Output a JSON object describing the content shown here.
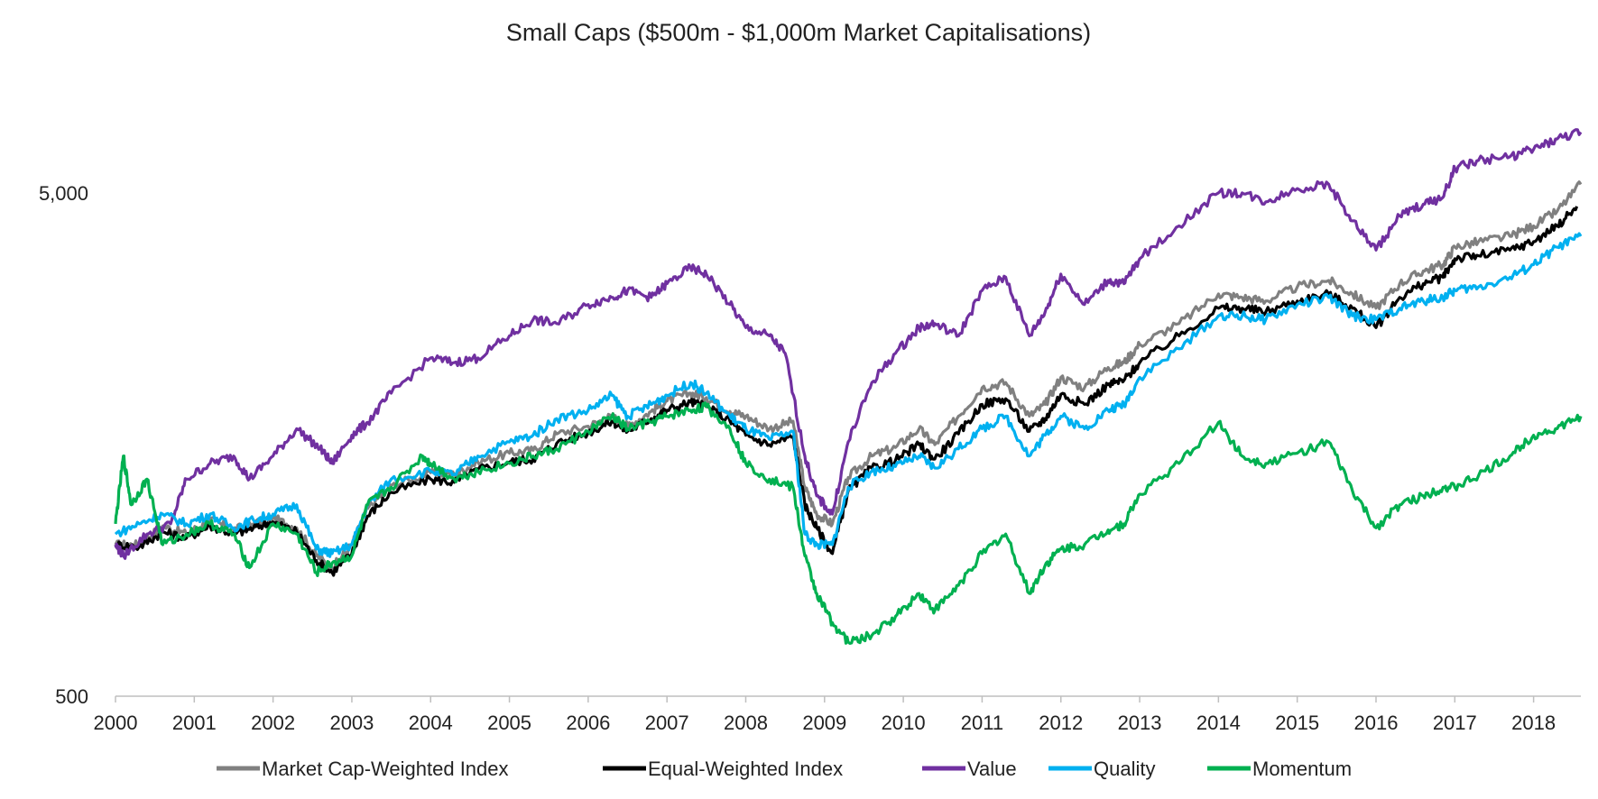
{
  "chart_data": {
    "type": "line",
    "title": "Small Caps ($500m - $1,000m Market Capitalisations)",
    "xlabel": "",
    "ylabel": "",
    "y_scale": "log",
    "ylim": [
      500,
      8000
    ],
    "xlim": [
      2000,
      2018.6
    ],
    "grid": false,
    "legend_position": "bottom",
    "y_ticks": [
      500,
      5000
    ],
    "y_tick_labels": [
      "500",
      "5,000"
    ],
    "x_ticks": [
      2000,
      2001,
      2002,
      2003,
      2004,
      2005,
      2006,
      2007,
      2008,
      2009,
      2010,
      2011,
      2012,
      2013,
      2014,
      2015,
      2016,
      2017,
      2018
    ],
    "x_tick_labels": [
      "2000",
      "2001",
      "2002",
      "2003",
      "2004",
      "2005",
      "2006",
      "2007",
      "2008",
      "2009",
      "2010",
      "2011",
      "2012",
      "2013",
      "2014",
      "2015",
      "2016",
      "2017",
      "2018"
    ],
    "series": [
      {
        "name": "Market Cap-Weighted Index",
        "color": "#808080",
        "x": [
          2000.0,
          2000.3,
          2000.6,
          2000.9,
          2001.2,
          2001.5,
          2001.75,
          2002.0,
          2002.3,
          2002.55,
          2002.75,
          2003.0,
          2003.2,
          2003.5,
          2004.0,
          2004.3,
          2004.6,
          2005.0,
          2005.3,
          2005.6,
          2006.0,
          2006.3,
          2006.5,
          2006.8,
          2007.0,
          2007.3,
          2007.5,
          2007.8,
          2008.0,
          2008.3,
          2008.6,
          2008.75,
          2008.9,
          2009.1,
          2009.3,
          2009.6,
          2009.9,
          2010.2,
          2010.4,
          2010.7,
          2011.0,
          2011.3,
          2011.6,
          2011.8,
          2012.0,
          2012.3,
          2012.6,
          2012.8,
          2013.0,
          2013.5,
          2014.0,
          2014.3,
          2014.6,
          2015.0,
          2015.4,
          2015.7,
          2016.0,
          2016.3,
          2016.6,
          2016.85,
          2017.0,
          2017.3,
          2017.7,
          2018.0,
          2018.3,
          2018.6
        ],
        "values": [
          1000,
          1000,
          1090,
          1050,
          1120,
          1070,
          1100,
          1130,
          1080,
          950,
          900,
          1000,
          1180,
          1310,
          1390,
          1380,
          1460,
          1520,
          1540,
          1660,
          1720,
          1800,
          1720,
          1840,
          1930,
          2000,
          1960,
          1840,
          1800,
          1700,
          1760,
          1300,
          1150,
          1100,
          1360,
          1500,
          1560,
          1700,
          1580,
          1800,
          2050,
          2100,
          1800,
          1900,
          2150,
          2050,
          2250,
          2300,
          2500,
          2750,
          3150,
          3100,
          3050,
          3250,
          3350,
          3150,
          2950,
          3300,
          3500,
          3600,
          3900,
          4000,
          4100,
          4300,
          4600,
          5200
        ]
      },
      {
        "name": "Equal-Weighted Index",
        "color": "#000000",
        "x": [
          2000.0,
          2000.3,
          2000.6,
          2000.9,
          2001.2,
          2001.5,
          2001.75,
          2002.0,
          2002.3,
          2002.55,
          2002.75,
          2003.0,
          2003.2,
          2003.5,
          2004.0,
          2004.3,
          2004.6,
          2005.0,
          2005.3,
          2005.6,
          2006.0,
          2006.3,
          2006.5,
          2006.8,
          2007.0,
          2007.3,
          2007.5,
          2007.8,
          2008.0,
          2008.3,
          2008.6,
          2008.75,
          2008.9,
          2009.1,
          2009.3,
          2009.6,
          2009.9,
          2010.2,
          2010.4,
          2010.7,
          2011.0,
          2011.3,
          2011.6,
          2011.8,
          2012.0,
          2012.3,
          2012.6,
          2012.8,
          2013.0,
          2013.5,
          2014.0,
          2014.3,
          2014.6,
          2015.0,
          2015.4,
          2015.7,
          2016.0,
          2016.3,
          2016.6,
          2016.85,
          2017.0,
          2017.3,
          2017.7,
          2018.0,
          2018.3,
          2018.55
        ],
        "values": [
          1000,
          990,
          1060,
          1030,
          1090,
          1050,
          1080,
          1110,
          1060,
          930,
          880,
          960,
          1140,
          1270,
          1350,
          1330,
          1410,
          1460,
          1480,
          1590,
          1670,
          1760,
          1680,
          1780,
          1850,
          1920,
          1880,
          1760,
          1650,
          1580,
          1640,
          1200,
          1080,
          960,
          1280,
          1420,
          1470,
          1580,
          1480,
          1660,
          1900,
          1950,
          1680,
          1780,
          1990,
          1900,
          2080,
          2120,
          2300,
          2600,
          2950,
          2950,
          2900,
          3050,
          3150,
          2950,
          2700,
          3100,
          3300,
          3400,
          3700,
          3750,
          3850,
          4000,
          4300,
          4700
        ]
      },
      {
        "name": "Value",
        "color": "#7030A0",
        "x": [
          2000.0,
          2000.1,
          2000.4,
          2000.7,
          2000.9,
          2001.2,
          2001.5,
          2001.7,
          2002.0,
          2002.3,
          2002.6,
          2002.75,
          2003.0,
          2003.2,
          2003.5,
          2004.0,
          2004.3,
          2004.6,
          2005.0,
          2005.3,
          2005.6,
          2006.0,
          2006.3,
          2006.5,
          2006.8,
          2007.0,
          2007.3,
          2007.5,
          2007.8,
          2008.0,
          2008.3,
          2008.5,
          2008.75,
          2008.9,
          2009.1,
          2009.3,
          2009.6,
          2009.9,
          2010.2,
          2010.4,
          2010.7,
          2011.0,
          2011.3,
          2011.6,
          2011.8,
          2012.0,
          2012.3,
          2012.6,
          2012.8,
          2013.0,
          2013.5,
          2014.0,
          2014.3,
          2014.6,
          2015.0,
          2015.4,
          2015.7,
          2016.0,
          2016.3,
          2016.6,
          2016.85,
          2017.0,
          2017.3,
          2017.7,
          2018.0,
          2018.3,
          2018.6
        ],
        "values": [
          1000,
          950,
          1050,
          1100,
          1350,
          1450,
          1500,
          1350,
          1500,
          1700,
          1550,
          1450,
          1650,
          1750,
          2000,
          2350,
          2300,
          2350,
          2600,
          2800,
          2750,
          3000,
          3100,
          3200,
          3100,
          3300,
          3550,
          3450,
          3000,
          2700,
          2600,
          2400,
          1500,
          1250,
          1150,
          1600,
          2100,
          2400,
          2700,
          2750,
          2600,
          3200,
          3400,
          2600,
          2900,
          3450,
          3000,
          3350,
          3300,
          3700,
          4300,
          5000,
          5000,
          4800,
          5100,
          5200,
          4400,
          3850,
          4500,
          4750,
          4900,
          5600,
          5800,
          5900,
          6100,
          6400,
          6600
        ]
      },
      {
        "name": "Quality",
        "color": "#00B0F0",
        "x": [
          2000.0,
          2000.3,
          2000.6,
          2000.9,
          2001.2,
          2001.5,
          2001.75,
          2002.0,
          2002.3,
          2002.55,
          2002.75,
          2003.0,
          2003.2,
          2003.5,
          2004.0,
          2004.3,
          2004.6,
          2005.0,
          2005.3,
          2005.6,
          2006.0,
          2006.3,
          2006.5,
          2006.8,
          2007.0,
          2007.3,
          2007.5,
          2007.8,
          2008.0,
          2008.3,
          2008.6,
          2008.75,
          2008.9,
          2009.1,
          2009.3,
          2009.6,
          2009.9,
          2010.2,
          2010.4,
          2010.7,
          2011.0,
          2011.3,
          2011.6,
          2011.8,
          2012.0,
          2012.3,
          2012.6,
          2012.8,
          2013.0,
          2013.5,
          2014.0,
          2014.3,
          2014.6,
          2015.0,
          2015.4,
          2015.7,
          2016.0,
          2016.3,
          2016.6,
          2016.85,
          2017.0,
          2017.3,
          2017.7,
          2018.0,
          2018.3,
          2018.6
        ],
        "values": [
          1050,
          1100,
          1150,
          1100,
          1150,
          1080,
          1120,
          1150,
          1200,
          980,
          960,
          1000,
          1200,
          1350,
          1400,
          1380,
          1500,
          1600,
          1650,
          1780,
          1850,
          1980,
          1800,
          1900,
          1980,
          2100,
          2000,
          1800,
          1700,
          1620,
          1680,
          1050,
          1000,
          1000,
          1300,
          1400,
          1430,
          1500,
          1420,
          1550,
          1700,
          1800,
          1500,
          1650,
          1800,
          1700,
          1850,
          1900,
          2150,
          2450,
          2850,
          2850,
          2800,
          3000,
          3100,
          2850,
          2800,
          2950,
          3050,
          3100,
          3200,
          3250,
          3400,
          3600,
          3900,
          4100
        ]
      },
      {
        "name": "Momentum",
        "color": "#00B050",
        "x": [
          2000.0,
          2000.1,
          2000.2,
          2000.4,
          2000.6,
          2000.9,
          2001.2,
          2001.5,
          2001.7,
          2002.0,
          2002.3,
          2002.55,
          2002.75,
          2003.0,
          2003.2,
          2003.5,
          2003.9,
          2004.0,
          2004.3,
          2004.6,
          2005.0,
          2005.3,
          2005.6,
          2006.0,
          2006.3,
          2006.5,
          2006.8,
          2007.0,
          2007.3,
          2007.5,
          2007.8,
          2008.0,
          2008.3,
          2008.6,
          2008.75,
          2008.9,
          2009.1,
          2009.3,
          2009.6,
          2009.9,
          2010.2,
          2010.4,
          2010.7,
          2011.0,
          2011.3,
          2011.6,
          2011.8,
          2012.0,
          2012.3,
          2012.6,
          2012.8,
          2013.0,
          2013.5,
          2014.0,
          2014.3,
          2014.6,
          2015.0,
          2015.4,
          2015.7,
          2016.0,
          2016.3,
          2016.6,
          2016.85,
          2017.0,
          2017.3,
          2017.7,
          2018.0,
          2018.3,
          2018.6
        ],
        "values": [
          1100,
          1500,
          1200,
          1350,
          1000,
          1050,
          1100,
          1050,
          900,
          1100,
          1050,
          880,
          920,
          950,
          1200,
          1300,
          1500,
          1450,
          1350,
          1400,
          1450,
          1500,
          1550,
          1680,
          1800,
          1700,
          1750,
          1800,
          1850,
          1880,
          1700,
          1450,
          1350,
          1300,
          950,
          800,
          700,
          640,
          660,
          720,
          800,
          740,
          830,
          960,
          1050,
          800,
          910,
          980,
          1000,
          1070,
          1100,
          1260,
          1450,
          1750,
          1500,
          1450,
          1520,
          1600,
          1280,
          1080,
          1200,
          1250,
          1300,
          1300,
          1370,
          1500,
          1650,
          1700,
          1800
        ]
      }
    ]
  }
}
